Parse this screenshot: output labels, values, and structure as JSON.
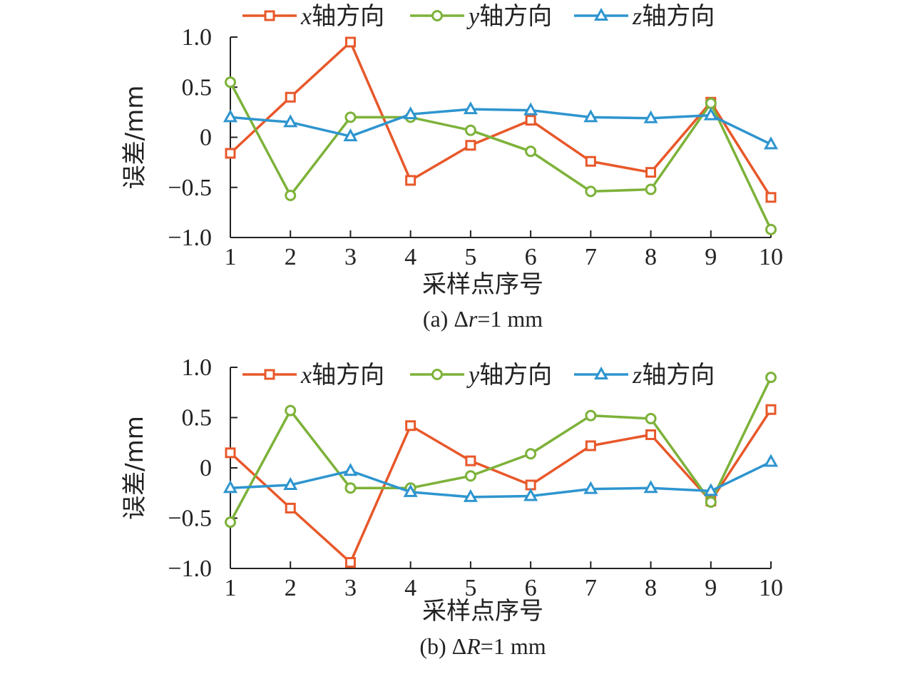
{
  "colors": {
    "x": "#E8582A",
    "y": "#7DB23A",
    "z": "#2E95CF"
  },
  "chart_data": [
    {
      "type": "line",
      "caption_prefix": "(a) Δ",
      "caption_var": "r",
      "caption_suffix": "=1 mm",
      "xlabel": "采样点序号",
      "ylabel": "误差/mm",
      "ylim": [
        -1.0,
        1.0
      ],
      "yticks": [
        "1.0",
        "0.5",
        "0",
        "−0.5",
        "−1.0"
      ],
      "categories": [
        "1",
        "2",
        "3",
        "4",
        "5",
        "6",
        "7",
        "8",
        "9",
        "10"
      ],
      "legend_position": "top",
      "series": [
        {
          "var": "x",
          "name": "轴方向",
          "marker": "square",
          "values": [
            -0.16,
            0.4,
            0.95,
            -0.43,
            -0.08,
            0.17,
            -0.24,
            -0.35,
            0.35,
            -0.6
          ]
        },
        {
          "var": "y",
          "name": "轴方向",
          "marker": "circle",
          "values": [
            0.55,
            -0.58,
            0.2,
            0.2,
            0.07,
            -0.14,
            -0.54,
            -0.52,
            0.34,
            -0.92
          ]
        },
        {
          "var": "z",
          "name": "轴方向",
          "marker": "triangle",
          "values": [
            0.2,
            0.15,
            0.01,
            0.23,
            0.28,
            0.27,
            0.2,
            0.19,
            0.22,
            -0.07
          ]
        }
      ]
    },
    {
      "type": "line",
      "caption_prefix": "(b) Δ",
      "caption_var": "R",
      "caption_suffix": "=1 mm",
      "xlabel": "采样点序号",
      "ylabel": "误差/mm",
      "ylim": [
        -1.0,
        1.0
      ],
      "yticks": [
        "1.0",
        "0.5",
        "0",
        "−0.5",
        "−1.0"
      ],
      "categories": [
        "1",
        "2",
        "3",
        "4",
        "5",
        "6",
        "7",
        "8",
        "9",
        "10"
      ],
      "legend_position": "top",
      "series": [
        {
          "var": "x",
          "name": "轴方向",
          "marker": "square",
          "values": [
            0.15,
            -0.4,
            -0.94,
            0.42,
            0.07,
            -0.17,
            0.22,
            0.33,
            -0.33,
            0.58
          ]
        },
        {
          "var": "y",
          "name": "轴方向",
          "marker": "circle",
          "values": [
            -0.54,
            0.57,
            -0.2,
            -0.2,
            -0.08,
            0.14,
            0.52,
            0.49,
            -0.34,
            0.9
          ]
        },
        {
          "var": "z",
          "name": "轴方向",
          "marker": "triangle",
          "values": [
            -0.2,
            -0.17,
            -0.03,
            -0.24,
            -0.29,
            -0.28,
            -0.21,
            -0.2,
            -0.23,
            0.06
          ]
        }
      ]
    }
  ]
}
